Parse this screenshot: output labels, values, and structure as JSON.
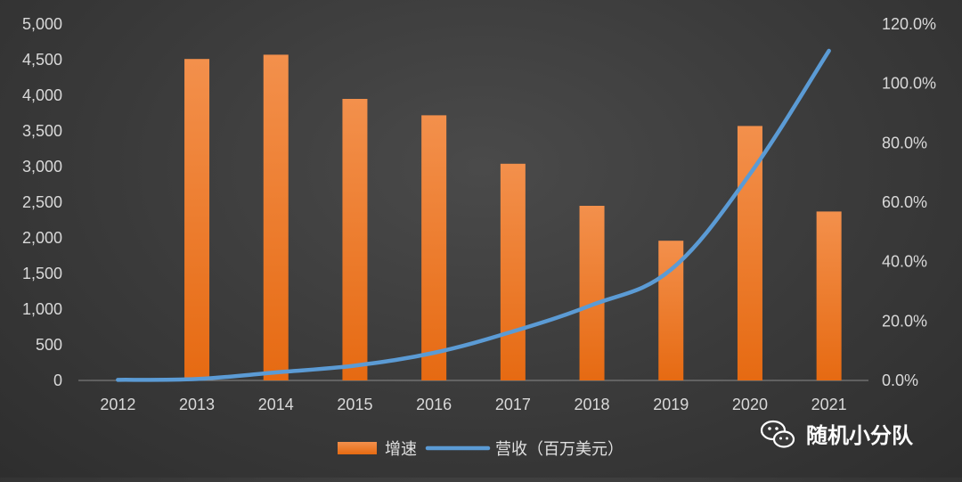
{
  "chart_data": {
    "type": "bar",
    "categories": [
      "2012",
      "2013",
      "2014",
      "2015",
      "2016",
      "2017",
      "2018",
      "2019",
      "2020",
      "2021"
    ],
    "series": [
      {
        "name": "增速",
        "type": "bar",
        "axis": "left",
        "color": "#f07d2e",
        "values": [
          0,
          4510,
          4570,
          3950,
          3720,
          3040,
          2450,
          1960,
          3570,
          2370
        ]
      },
      {
        "name": "营收（百万美元）",
        "type": "line",
        "axis": "right",
        "color": "#5b9bd5",
        "values": [
          0.2,
          0.5,
          2.7,
          5.0,
          9.3,
          16.5,
          25.4,
          37.3,
          69.5,
          111.0
        ]
      }
    ],
    "y_left": {
      "range": [
        0,
        5000
      ],
      "ticks": [
        "0",
        "500",
        "1,000",
        "1,500",
        "2,000",
        "2,500",
        "3,000",
        "3,500",
        "4,000",
        "4,500",
        "5,000"
      ]
    },
    "y_right": {
      "range": [
        0,
        120
      ],
      "ticks": [
        "0.0%",
        "20.0%",
        "40.0%",
        "60.0%",
        "80.0%",
        "100.0%",
        "120.0%"
      ]
    },
    "grid": false,
    "legend": "bottom"
  },
  "watermark": {
    "text": "随机小分队",
    "icon": "wechat-icon"
  }
}
